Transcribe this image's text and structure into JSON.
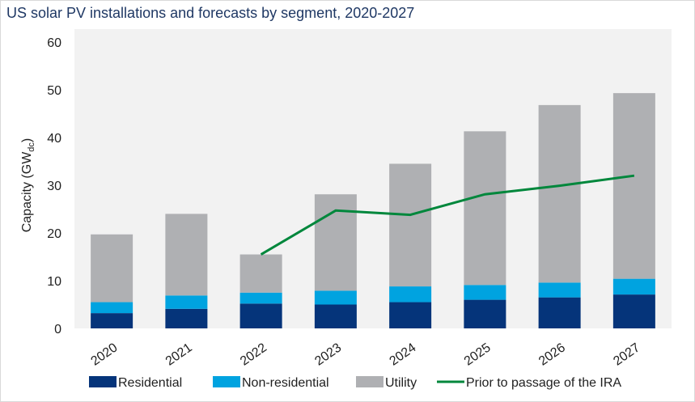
{
  "chart_data": {
    "type": "bar",
    "stacked": true,
    "title": "US solar PV installations and forecasts by segment, 2020-2027",
    "ylabel": "Capacity (GW",
    "ylabel_sub": "dc",
    "ylabel_close": ")",
    "xlabel": "",
    "ylim": [
      0,
      60
    ],
    "yticks": [
      0,
      10,
      20,
      30,
      40,
      50,
      60
    ],
    "grid": false,
    "legend": "bottom",
    "categories": [
      "2020",
      "2021",
      "2022",
      "2023",
      "2024",
      "2025",
      "2026",
      "2027"
    ],
    "series": [
      {
        "name": "Residential",
        "color": "#05347a",
        "values": [
          3.2,
          4.1,
          5.2,
          5.0,
          5.5,
          6.0,
          6.5,
          7.1
        ]
      },
      {
        "name": "Non-residential",
        "color": "#00a3e0",
        "values": [
          2.3,
          2.8,
          2.3,
          2.9,
          3.3,
          3.1,
          3.1,
          3.3
        ]
      },
      {
        "name": "Utility",
        "color": "#afb0b3",
        "values": [
          14.2,
          17.1,
          8.0,
          20.2,
          25.7,
          32.2,
          37.2,
          38.9
        ]
      }
    ],
    "line_series": {
      "name": "Prior to passage of the IRA",
      "color": "#00873c",
      "categories": [
        "2022",
        "2023",
        "2024",
        "2025",
        "2026",
        "2027"
      ],
      "values": [
        15.5,
        24.7,
        23.8,
        28.1,
        29.9,
        32.0
      ]
    }
  }
}
